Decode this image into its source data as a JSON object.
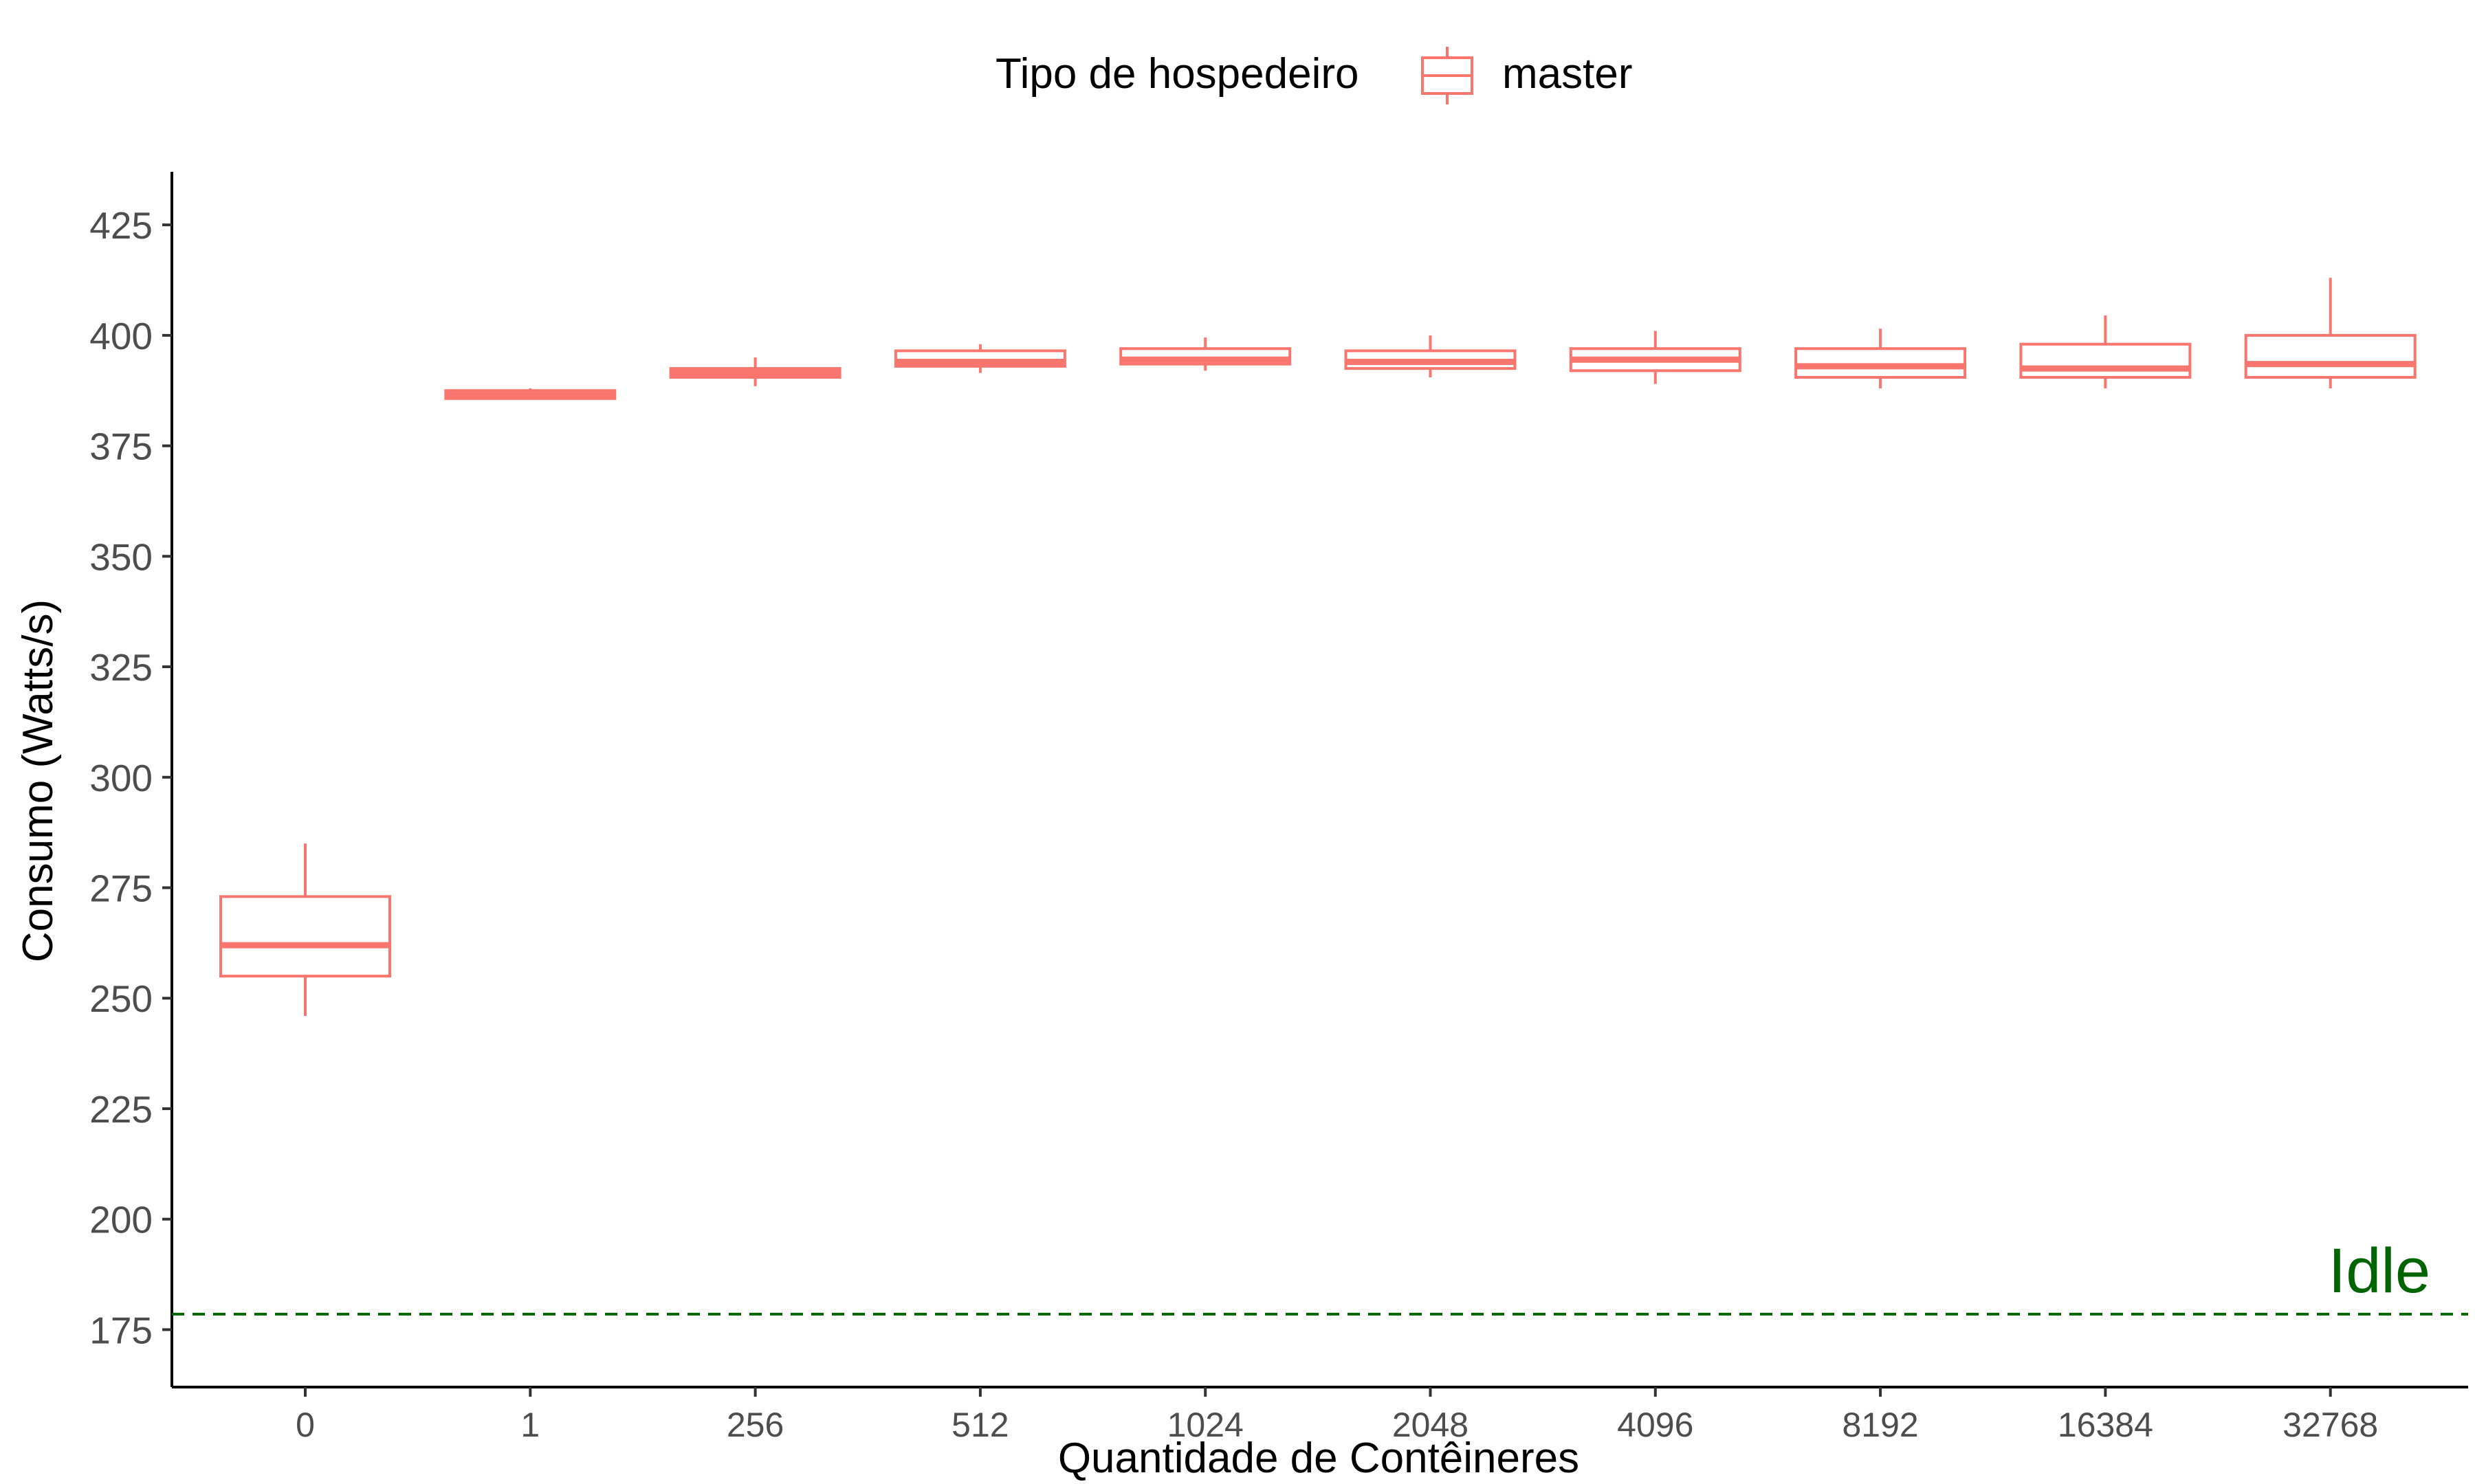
{
  "chart_data": {
    "type": "box",
    "title": "",
    "xlabel": "Quantidade de Contêineres",
    "ylabel": "Consumo (Watts/s)",
    "ylim": [
      162,
      437
    ],
    "yticks": [
      175,
      200,
      225,
      250,
      275,
      300,
      325,
      350,
      375,
      400,
      425
    ],
    "categories": [
      "0",
      "1",
      "256",
      "512",
      "1024",
      "2048",
      "4096",
      "8192",
      "16384",
      "32768"
    ],
    "legend": {
      "title": "Tipo de hospedeiro",
      "entries": [
        "master"
      ],
      "position": "top"
    },
    "series": [
      {
        "name": "master",
        "color": "#F8766D",
        "boxes": [
          {
            "min": 246,
            "q1": 255,
            "median": 262,
            "q3": 273,
            "max": 285
          },
          {
            "min": 385.5,
            "q1": 385.7,
            "median": 386.5,
            "q3": 387.5,
            "max": 388
          },
          {
            "min": 388.5,
            "q1": 390.5,
            "median": 391.5,
            "q3": 392.5,
            "max": 395
          },
          {
            "min": 391.5,
            "q1": 393,
            "median": 394,
            "q3": 396.5,
            "max": 398
          },
          {
            "min": 392,
            "q1": 393.5,
            "median": 394.5,
            "q3": 397,
            "max": 399.5
          },
          {
            "min": 390.5,
            "q1": 392.5,
            "median": 394,
            "q3": 396.5,
            "max": 400
          },
          {
            "min": 389,
            "q1": 392,
            "median": 394.5,
            "q3": 397,
            "max": 401
          },
          {
            "min": 388,
            "q1": 390.5,
            "median": 393,
            "q3": 397,
            "max": 401.5
          },
          {
            "min": 388,
            "q1": 390.5,
            "median": 392.5,
            "q3": 398,
            "max": 404.5
          },
          {
            "min": 388,
            "q1": 390.5,
            "median": 393.5,
            "q3": 400,
            "max": 413
          }
        ]
      }
    ],
    "reference_line": {
      "y": 178.5,
      "label": "Idle",
      "color": "#006400",
      "style": "dashed"
    }
  }
}
